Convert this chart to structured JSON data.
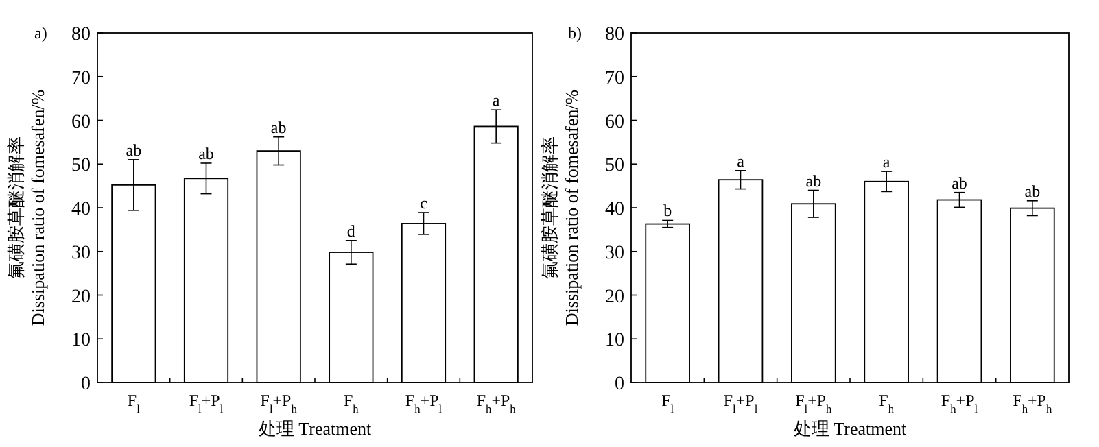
{
  "chart_data": [
    {
      "type": "bar",
      "title": "a)",
      "xlabel": "处理 Treatment",
      "ylabel": "氟磺胺草醚消解率\nDissipation ratio of fomesafen/%",
      "categories": [
        "F$_{l}$",
        "F$_{l}$+P$_{l}$",
        "F$_{l}$+P$_{h}$",
        "F$_{h}$",
        "F$_{h}$+P$_{l}$",
        "F$_{h}$+P$_{h}$"
      ],
      "values": [
        45.2,
        46.7,
        53.0,
        29.8,
        36.4,
        58.6
      ],
      "errors": [
        5.8,
        3.5,
        3.2,
        2.7,
        2.5,
        3.8
      ],
      "color": "#ffffff",
      "ylim": [
        0,
        80
      ],
      "yticks": [
        0,
        10,
        20,
        30,
        40,
        50,
        60,
        70,
        80
      ],
      "grid": false,
      "annotations": [
        {
          "text": "ab",
          "x": "F$_{l}$",
          "y": 51.0
        },
        {
          "text": "ab",
          "x": "F$_{l}$+P$_{l}$",
          "y": 50.2
        },
        {
          "text": "ab",
          "x": "F$_{l}$+P$_{h}$",
          "y": 56.2
        },
        {
          "text": "d",
          "x": "F$_{h}$",
          "y": 32.5
        },
        {
          "text": "c",
          "x": "F$_{h}$+P$_{l}$",
          "y": 38.9
        },
        {
          "text": "a",
          "x": "F$_{h}$+P$_{h}$",
          "y": 62.4
        }
      ]
    },
    {
      "type": "bar",
      "title": "b)",
      "xlabel": "处理 Treatment",
      "ylabel": "氟磺胺草醚消解率\nDissipation ratio of fomesafen/%",
      "categories": [
        "F$_{l}$",
        "F$_{l}$+P$_{l}$",
        "F$_{l}$+P$_{h}$",
        "F$_{h}$",
        "F$_{h}$+P$_{l}$",
        "F$_{h}$+P$_{h}$"
      ],
      "values": [
        36.3,
        46.4,
        40.9,
        46.0,
        41.8,
        39.9
      ],
      "errors": [
        0.8,
        2.1,
        3.1,
        2.3,
        1.7,
        1.7
      ],
      "color": "#ffffff",
      "ylim": [
        0,
        80
      ],
      "yticks": [
        0,
        10,
        20,
        30,
        40,
        50,
        60,
        70,
        80
      ],
      "grid": false,
      "annotations": [
        {
          "text": "b",
          "x": "F$_{l}$",
          "y": 37.1
        },
        {
          "text": "a",
          "x": "F$_{l}$+P$_{l}$",
          "y": 48.5
        },
        {
          "text": "ab",
          "x": "F$_{l}$+P$_{h}$",
          "y": 44.0
        },
        {
          "text": "a",
          "x": "F$_{h}$",
          "y": 48.3
        },
        {
          "text": "ab",
          "x": "F$_{h}$+P$_{l}$",
          "y": 43.5
        },
        {
          "text": "ab",
          "x": "F$_{h}$+P$_{h}$",
          "y": 41.6
        }
      ]
    }
  ]
}
